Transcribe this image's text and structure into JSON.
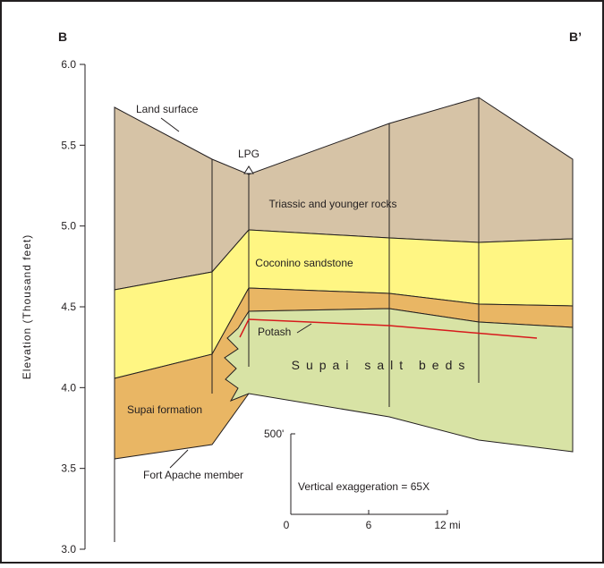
{
  "header": {
    "left": "B",
    "right": "B’"
  },
  "axis": {
    "label": "Elevation (Thousand feet)",
    "ylim": [
      3.0,
      6.0
    ],
    "yticks": [
      {
        "value": 6.0,
        "label": "6.0"
      },
      {
        "value": 5.5,
        "label": "5.5"
      },
      {
        "value": 5.0,
        "label": "5.0"
      },
      {
        "value": 4.5,
        "label": "4.5"
      },
      {
        "value": 4.0,
        "label": "4.0"
      },
      {
        "value": 3.5,
        "label": "3.5"
      },
      {
        "value": 3.0,
        "label": "3.0"
      }
    ]
  },
  "labels": {
    "land_surface": "Land surface",
    "lpg": "LPG",
    "triassic": "Triassic and younger rocks",
    "coconino": "Coconino sandstone",
    "potash": "Potash",
    "supai_salt": "Supai salt beds",
    "supai_formation": "Supai formation",
    "fort_apache": "Fort Apache member"
  },
  "scale": {
    "vertical": "500'",
    "exaggeration": "Vertical exaggeration = 65X",
    "ticks": [
      "0",
      "6",
      "12 mi"
    ]
  }
}
